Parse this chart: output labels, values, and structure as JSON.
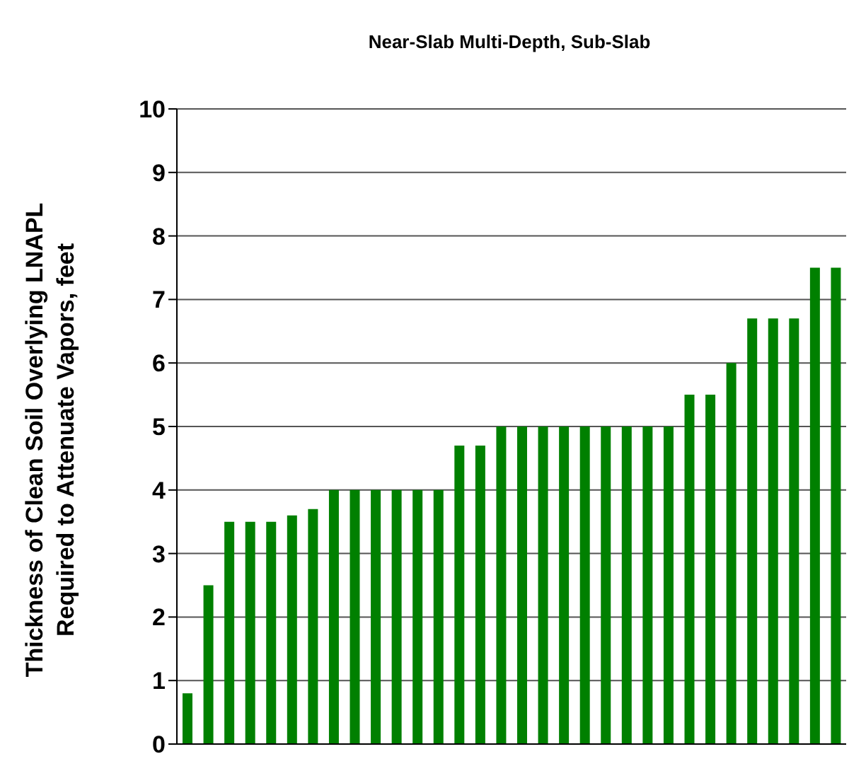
{
  "chart_data": {
    "type": "bar",
    "title": "Near-Slab Multi-Depth, Sub-Slab",
    "ylabel": "Thickness of Clean Soil Overlying LNAPL Required to Attenuate Vapors, feet",
    "categories": [
      null,
      null,
      null,
      null,
      null,
      null,
      null,
      null,
      null,
      null,
      null,
      null,
      null,
      null,
      null,
      null,
      null,
      null,
      null,
      null,
      null,
      null,
      null,
      null,
      null,
      null,
      null,
      null,
      null,
      null,
      null,
      null
    ],
    "values": [
      0.8,
      2.5,
      3.5,
      3.5,
      3.5,
      3.6,
      3.7,
      4,
      4,
      4,
      4,
      4,
      4,
      4.7,
      4.7,
      5,
      5,
      5,
      5,
      5,
      5,
      5,
      5,
      5,
      5.5,
      5.5,
      6,
      6.7,
      6.7,
      6.7,
      7.5,
      7.5
    ],
    "color": "#008000",
    "ylim": [
      0,
      10
    ],
    "yticks": [
      0,
      1,
      2,
      3,
      4,
      5,
      6,
      7,
      8,
      9,
      10
    ],
    "grid": "y"
  }
}
